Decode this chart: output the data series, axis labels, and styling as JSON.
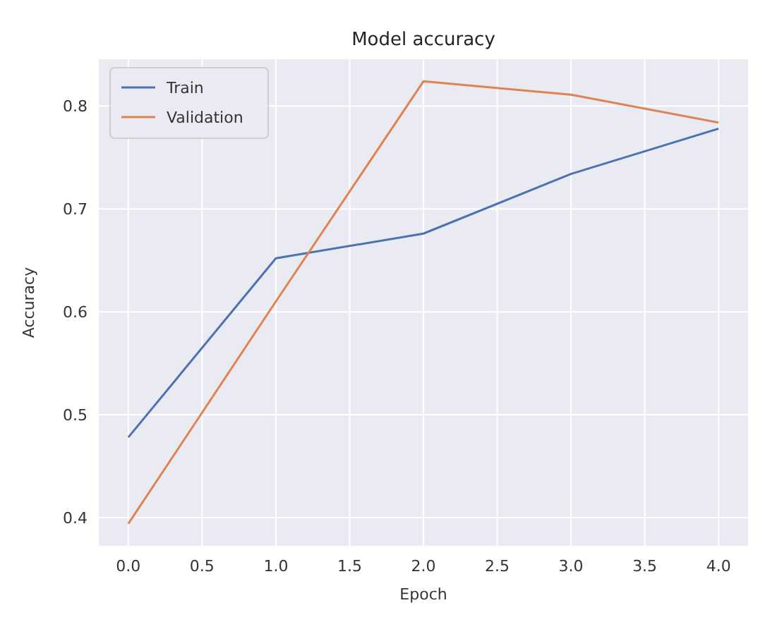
{
  "chart_data": {
    "type": "line",
    "title": "Model accuracy",
    "xlabel": "Epoch",
    "ylabel": "Accuracy",
    "x": [
      0,
      1,
      2,
      3,
      4
    ],
    "series": [
      {
        "name": "Train",
        "color": "#4c72b0",
        "values": [
          0.478,
          0.652,
          0.676,
          0.734,
          0.778
        ]
      },
      {
        "name": "Validation",
        "color": "#dd8452",
        "values": [
          0.394,
          0.61,
          0.824,
          0.811,
          0.784
        ]
      }
    ],
    "xlim": [
      -0.2,
      4.2
    ],
    "xticks": [
      {
        "value": 0,
        "label": "0.0"
      },
      {
        "value": 0.5,
        "label": "0.5"
      },
      {
        "value": 1,
        "label": "1.0"
      },
      {
        "value": 1.5,
        "label": "1.5"
      },
      {
        "value": 2,
        "label": "2.0"
      },
      {
        "value": 2.5,
        "label": "2.5"
      },
      {
        "value": 3,
        "label": "3.0"
      },
      {
        "value": 3.5,
        "label": "3.5"
      },
      {
        "value": 4,
        "label": "4.0"
      }
    ],
    "ylim": [
      0.3725,
      0.8455
    ],
    "yticks": [
      0.4,
      0.5,
      0.6,
      0.7,
      0.8
    ],
    "grid": true,
    "legend": "top left",
    "marker": "none",
    "line_style": "solid"
  }
}
